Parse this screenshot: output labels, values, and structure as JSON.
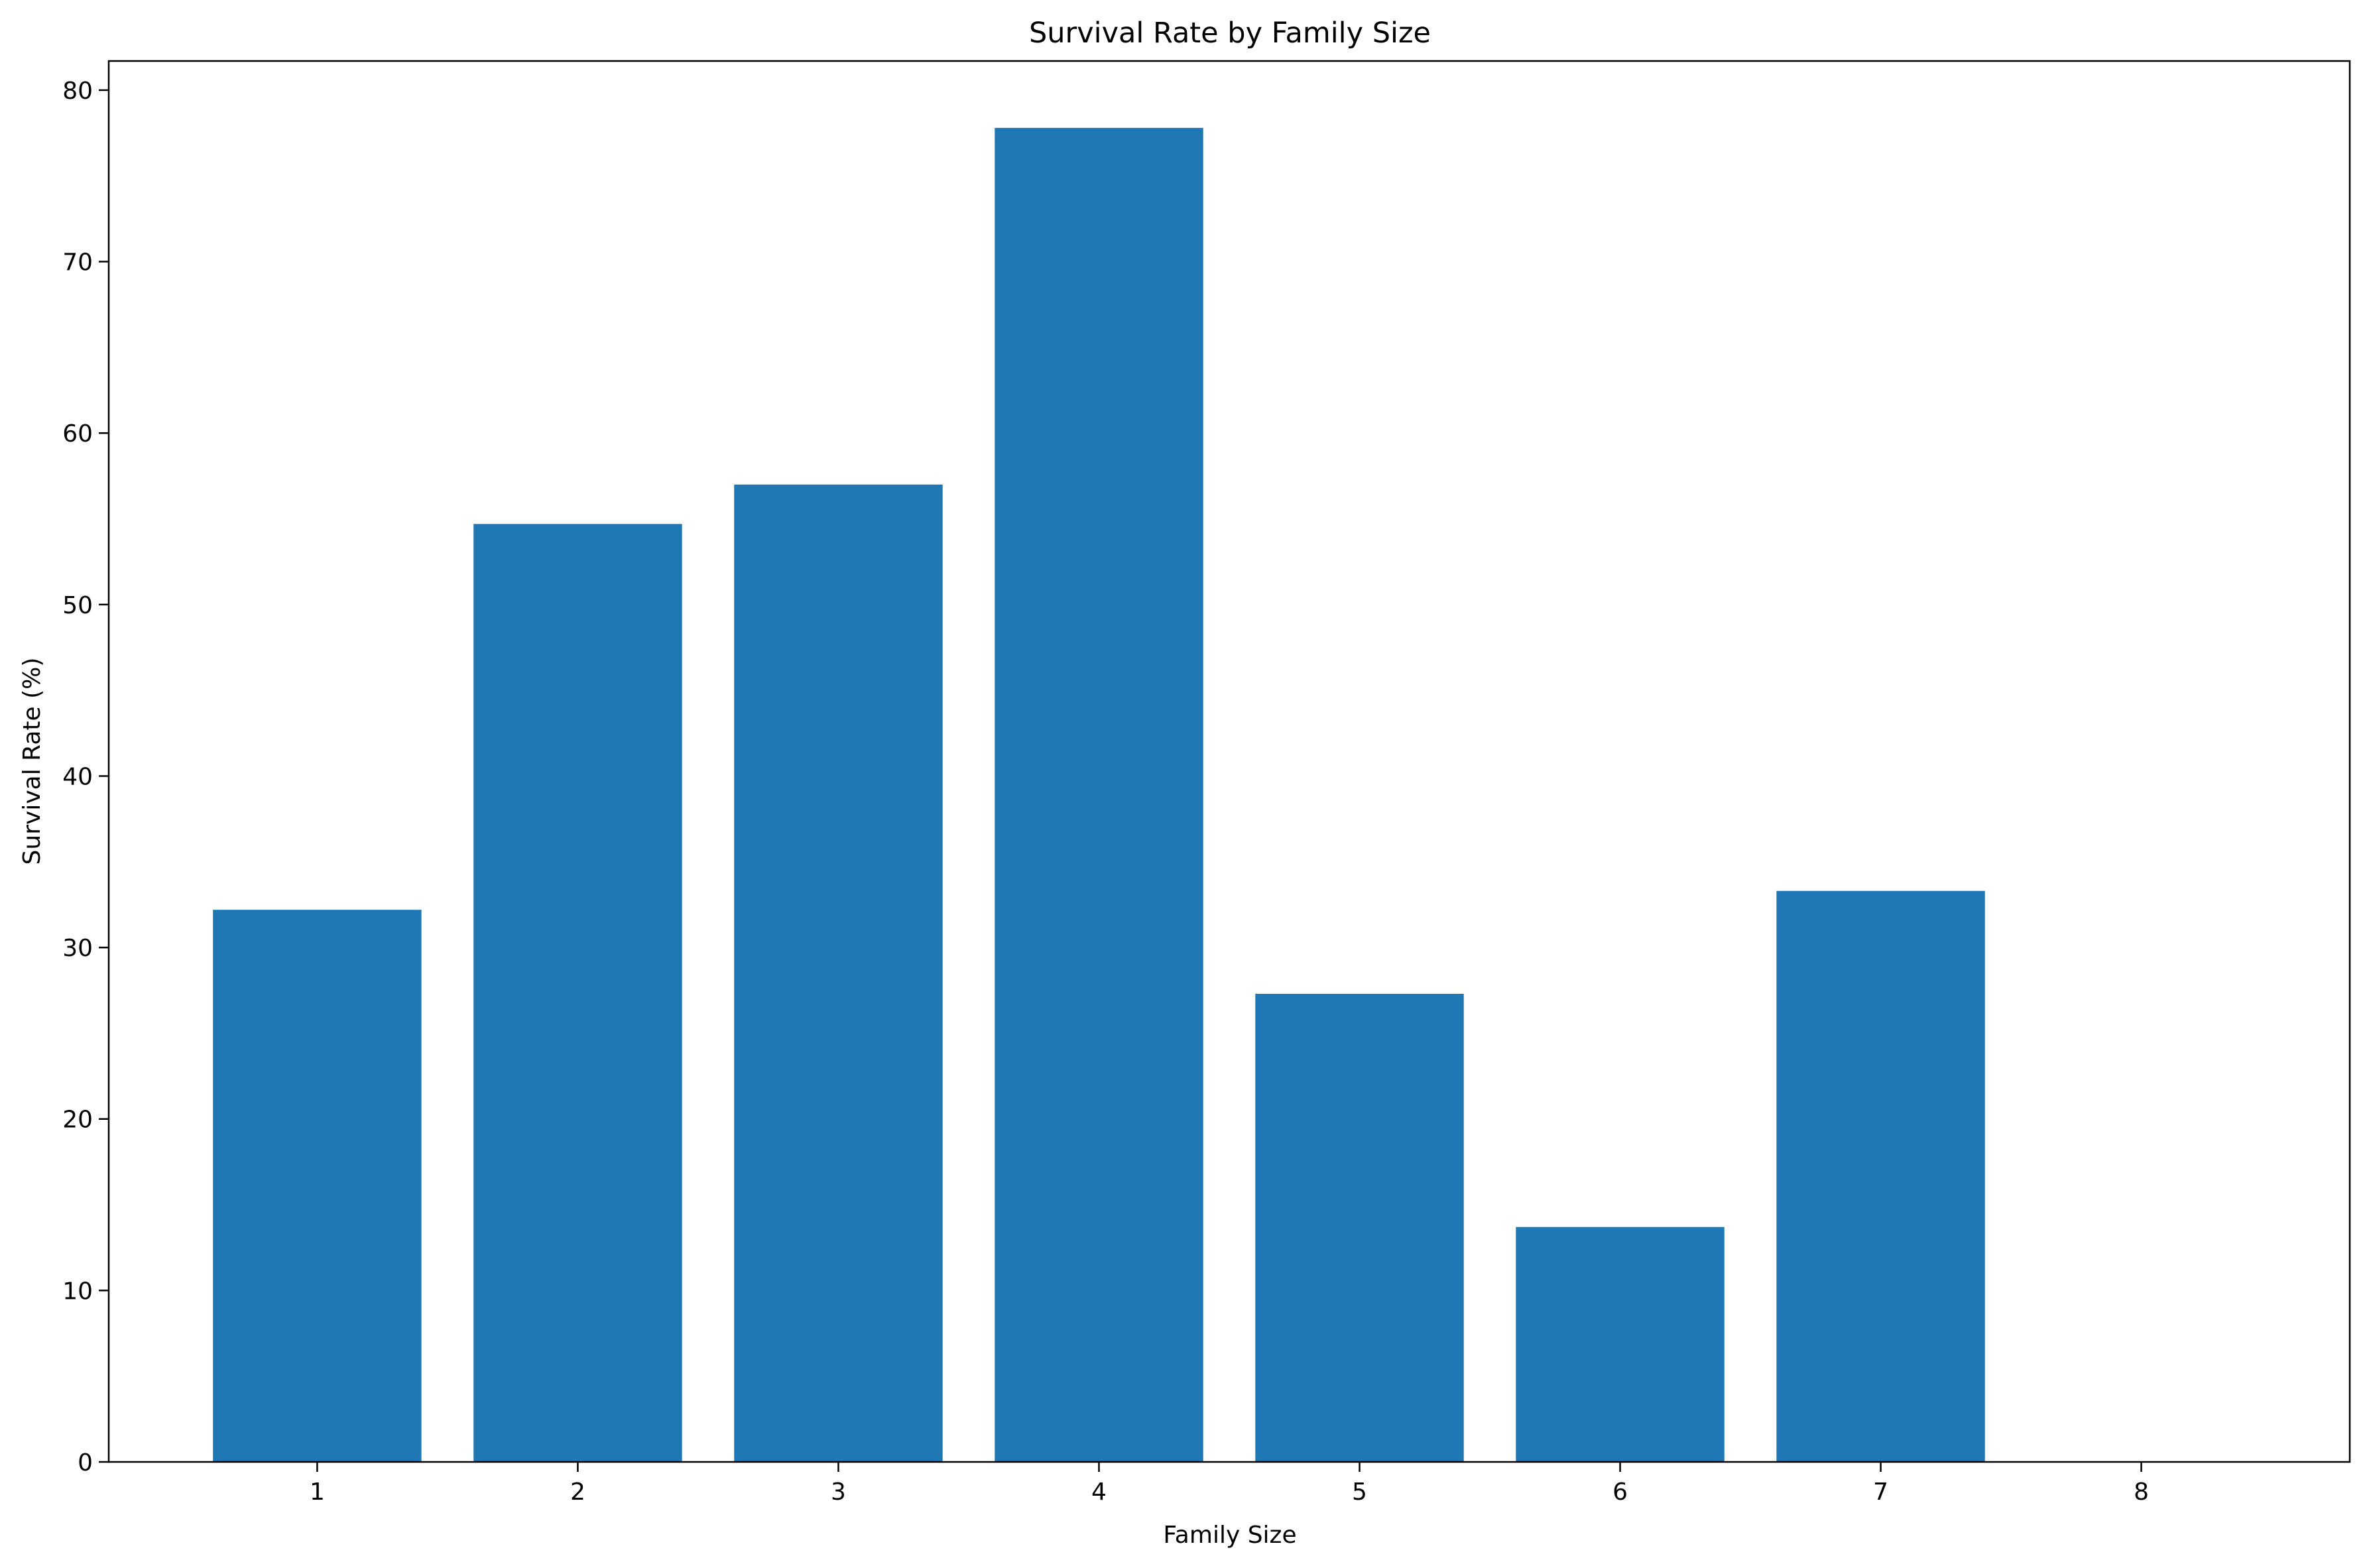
{
  "chart_data": {
    "type": "bar",
    "title": "Survival Rate by Family Size",
    "xlabel": "Family Size",
    "ylabel": "Survival Rate (%)",
    "categories": [
      "1",
      "2",
      "3",
      "4",
      "5",
      "6",
      "7",
      "8"
    ],
    "x": [
      1,
      2,
      3,
      4,
      5,
      6,
      7,
      8
    ],
    "values": [
      32.2,
      54.7,
      57.0,
      77.8,
      27.3,
      13.7,
      33.3,
      0
    ],
    "xlim": [
      0.2,
      8.8
    ],
    "ylim": [
      0,
      81.7
    ],
    "yticks": [
      0,
      10,
      20,
      30,
      40,
      50,
      60,
      70,
      80
    ],
    "grid": false,
    "legend": "none",
    "bar_color": "#1f77b4"
  }
}
